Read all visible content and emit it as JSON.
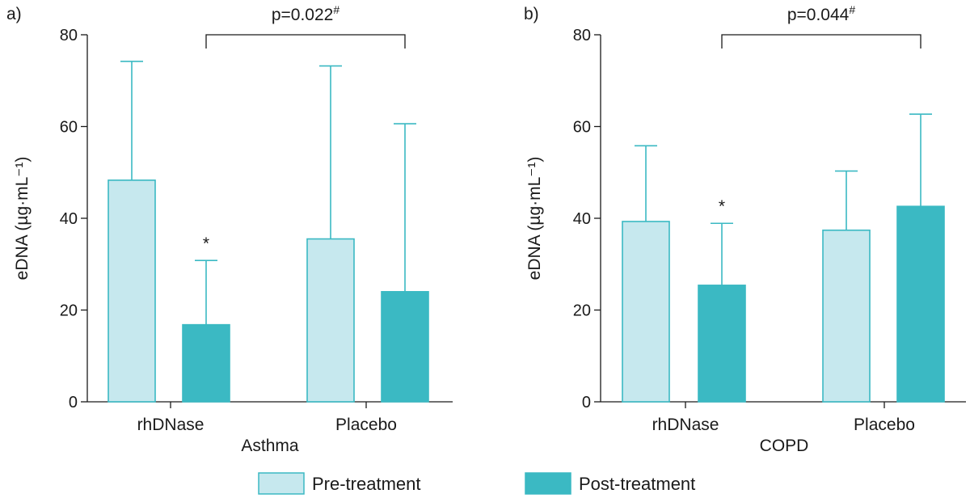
{
  "colors": {
    "pre": "#c6e8ee",
    "post": "#3bb9c3",
    "outline": "#3bb9c3",
    "axis": "#1a1a1a"
  },
  "chart_data": [
    {
      "panel_label": "a)",
      "type": "bar",
      "title": "",
      "xlabel": "Asthma",
      "ylabel": "eDNA (µg·mL⁻¹)",
      "ylim": [
        0,
        80
      ],
      "yticks": [
        "0",
        "20",
        "40",
        "60",
        "80"
      ],
      "categories": [
        "rhDNase",
        "Placebo"
      ],
      "series": [
        {
          "name": "Pre-treatment",
          "values": [
            48.3,
            35.5
          ],
          "error_upper": [
            74.2,
            73.2
          ]
        },
        {
          "name": "Post-treatment",
          "values": [
            16.8,
            24.0
          ],
          "error_upper": [
            30.8,
            60.6
          ]
        }
      ],
      "significance_marks": [
        "*",
        ""
      ],
      "comparison": {
        "text": "p=0.022",
        "sup": "#"
      }
    },
    {
      "panel_label": "b)",
      "type": "bar",
      "title": "",
      "xlabel": "COPD",
      "ylabel": "eDNA (µg·mL⁻¹)",
      "ylim": [
        0,
        80
      ],
      "yticks": [
        "0",
        "20",
        "40",
        "60",
        "80"
      ],
      "categories": [
        "rhDNase",
        "Placebo"
      ],
      "series": [
        {
          "name": "Pre-treatment",
          "values": [
            39.3,
            37.4
          ],
          "error_upper": [
            55.8,
            50.3
          ]
        },
        {
          "name": "Post-treatment",
          "values": [
            25.4,
            42.6
          ],
          "error_upper": [
            38.9,
            62.7
          ]
        }
      ],
      "significance_marks": [
        "*",
        ""
      ],
      "comparison": {
        "text": "p=0.044",
        "sup": "#"
      }
    }
  ],
  "legend": [
    {
      "label": "Pre-treatment"
    },
    {
      "label": "Post-treatment"
    }
  ]
}
